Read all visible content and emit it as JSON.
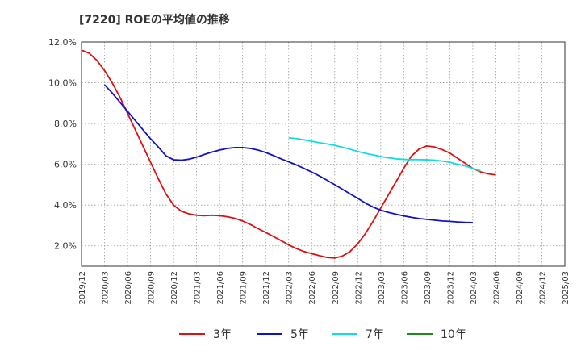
{
  "chart_data": {
    "type": "line",
    "title": "[7220]  ROEの平均値の推移",
    "xlabel": "",
    "ylabel": "",
    "ylim": [
      1.0,
      12.0
    ],
    "yticks": [
      "2.0%",
      "4.0%",
      "6.0%",
      "8.0%",
      "10.0%",
      "12.0%"
    ],
    "ytick_values": [
      2,
      4,
      6,
      8,
      10,
      12
    ],
    "categories": [
      "2019/12",
      "2020/03",
      "2020/06",
      "2020/09",
      "2020/12",
      "2021/03",
      "2021/06",
      "2021/09",
      "2021/12",
      "2022/03",
      "2022/06",
      "2022/09",
      "2022/12",
      "2023/03",
      "2023/06",
      "2023/09",
      "2023/12",
      "2024/03",
      "2024/06",
      "2024/09",
      "2024/12",
      "2025/03"
    ],
    "grid": true,
    "legend_position": "bottom",
    "series": [
      {
        "name": "3年",
        "color": "#dd1111",
        "points": [
          [
            0,
            11.6
          ],
          [
            0.333,
            11.45
          ],
          [
            0.667,
            11.1
          ],
          [
            1,
            10.6
          ],
          [
            1.333,
            10.0
          ],
          [
            1.667,
            9.3
          ],
          [
            2,
            8.5
          ],
          [
            2.333,
            7.7
          ],
          [
            2.667,
            6.9
          ],
          [
            3,
            6.1
          ],
          [
            3.333,
            5.3
          ],
          [
            3.667,
            4.55
          ],
          [
            4,
            4.0
          ],
          [
            4.333,
            3.7
          ],
          [
            4.667,
            3.57
          ],
          [
            5,
            3.5
          ],
          [
            5.333,
            3.48
          ],
          [
            5.667,
            3.5
          ],
          [
            6,
            3.48
          ],
          [
            6.333,
            3.43
          ],
          [
            6.667,
            3.35
          ],
          [
            7,
            3.22
          ],
          [
            7.333,
            3.05
          ],
          [
            7.667,
            2.85
          ],
          [
            8,
            2.66
          ],
          [
            8.333,
            2.46
          ],
          [
            8.667,
            2.26
          ],
          [
            9,
            2.05
          ],
          [
            9.333,
            1.87
          ],
          [
            9.667,
            1.72
          ],
          [
            10,
            1.62
          ],
          [
            10.333,
            1.52
          ],
          [
            10.667,
            1.43
          ],
          [
            11,
            1.4
          ],
          [
            11.333,
            1.5
          ],
          [
            11.667,
            1.72
          ],
          [
            12,
            2.1
          ],
          [
            12.333,
            2.6
          ],
          [
            12.667,
            3.2
          ],
          [
            13,
            3.85
          ],
          [
            13.333,
            4.5
          ],
          [
            13.667,
            5.15
          ],
          [
            14,
            5.8
          ],
          [
            14.333,
            6.4
          ],
          [
            14.667,
            6.75
          ],
          [
            15,
            6.9
          ],
          [
            15.333,
            6.85
          ],
          [
            15.667,
            6.72
          ],
          [
            16,
            6.55
          ],
          [
            16.333,
            6.3
          ],
          [
            16.667,
            6.05
          ],
          [
            17,
            5.8
          ],
          [
            17.333,
            5.63
          ],
          [
            17.667,
            5.53
          ],
          [
            18,
            5.48
          ]
        ]
      },
      {
        "name": "5年",
        "color": "#1111cc",
        "points": [
          [
            1,
            9.9
          ],
          [
            1.333,
            9.5
          ],
          [
            1.667,
            9.05
          ],
          [
            2,
            8.6
          ],
          [
            2.333,
            8.15
          ],
          [
            2.667,
            7.7
          ],
          [
            3,
            7.25
          ],
          [
            3.333,
            6.85
          ],
          [
            3.667,
            6.42
          ],
          [
            4,
            6.22
          ],
          [
            4.333,
            6.2
          ],
          [
            4.667,
            6.25
          ],
          [
            5,
            6.35
          ],
          [
            5.333,
            6.48
          ],
          [
            5.667,
            6.6
          ],
          [
            6,
            6.7
          ],
          [
            6.333,
            6.78
          ],
          [
            6.667,
            6.82
          ],
          [
            7,
            6.82
          ],
          [
            7.333,
            6.78
          ],
          [
            7.667,
            6.7
          ],
          [
            8,
            6.58
          ],
          [
            8.333,
            6.43
          ],
          [
            8.667,
            6.27
          ],
          [
            9,
            6.12
          ],
          [
            9.333,
            5.97
          ],
          [
            9.667,
            5.8
          ],
          [
            10,
            5.62
          ],
          [
            10.333,
            5.43
          ],
          [
            10.667,
            5.22
          ],
          [
            11,
            5.0
          ],
          [
            11.333,
            4.78
          ],
          [
            11.667,
            4.55
          ],
          [
            12,
            4.33
          ],
          [
            12.333,
            4.1
          ],
          [
            12.667,
            3.9
          ],
          [
            13,
            3.75
          ],
          [
            13.333,
            3.64
          ],
          [
            13.667,
            3.55
          ],
          [
            14,
            3.47
          ],
          [
            14.333,
            3.4
          ],
          [
            14.667,
            3.34
          ],
          [
            15,
            3.3
          ],
          [
            15.333,
            3.26
          ],
          [
            15.667,
            3.22
          ],
          [
            16,
            3.2
          ],
          [
            16.333,
            3.17
          ],
          [
            16.667,
            3.15
          ],
          [
            17,
            3.14
          ]
        ]
      },
      {
        "name": "7年",
        "color": "#11dddd",
        "points": [
          [
            9,
            7.3
          ],
          [
            9.333,
            7.26
          ],
          [
            9.667,
            7.2
          ],
          [
            10,
            7.13
          ],
          [
            10.333,
            7.06
          ],
          [
            10.667,
            7.0
          ],
          [
            11,
            6.93
          ],
          [
            11.333,
            6.84
          ],
          [
            11.667,
            6.74
          ],
          [
            12,
            6.63
          ],
          [
            12.333,
            6.54
          ],
          [
            12.667,
            6.46
          ],
          [
            13,
            6.38
          ],
          [
            13.333,
            6.32
          ],
          [
            13.667,
            6.27
          ],
          [
            14,
            6.24
          ],
          [
            14.333,
            6.23
          ],
          [
            14.667,
            6.23
          ],
          [
            15,
            6.22
          ],
          [
            15.333,
            6.2
          ],
          [
            15.667,
            6.16
          ],
          [
            16,
            6.1
          ],
          [
            16.333,
            6.0
          ],
          [
            16.667,
            5.92
          ],
          [
            17,
            5.8
          ],
          [
            17.333,
            5.68
          ]
        ]
      },
      {
        "name": "10年",
        "color": "#228822",
        "points": []
      }
    ]
  }
}
